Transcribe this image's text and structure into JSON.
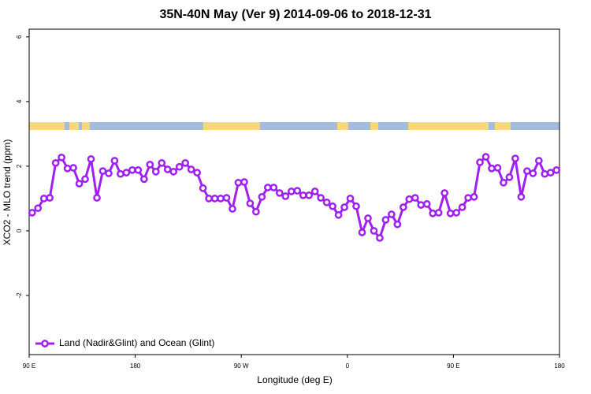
{
  "chart_data": {
    "type": "line",
    "title": "35N-40N May (Ver 9)   2014-09-06 to 2018-12-31",
    "x_label": "Longitude (deg E)",
    "y_label": "XCO2 - MLO trend (ppm)",
    "x": [
      92.5,
      97.5,
      102.5,
      107.5,
      112.5,
      117.5,
      122.5,
      127.5,
      132.5,
      137.5,
      142.5,
      147.5,
      152.5,
      157.5,
      162.5,
      167.5,
      172.5,
      177.5,
      182.5,
      187.5,
      192.5,
      197.5,
      202.5,
      207.5,
      212.5,
      217.5,
      222.5,
      227.5,
      232.5,
      237.5,
      242.5,
      247.5,
      252.5,
      257.5,
      262.5,
      267.5,
      272.5,
      277.5,
      282.5,
      287.5,
      292.5,
      297.5,
      302.5,
      307.5,
      312.5,
      317.5,
      322.5,
      327.5,
      332.5,
      337.5,
      342.5,
      347.5,
      352.5,
      357.5,
      362.5,
      367.5,
      372.5,
      377.5,
      382.5,
      387.5,
      392.5,
      397.5,
      402.5,
      407.5,
      412.5,
      417.5,
      422.5,
      427.5,
      432.5,
      437.5,
      442.5,
      447.5,
      452.5,
      457.5,
      462.5,
      467.5,
      472.5,
      477.5,
      482.5,
      487.5,
      492.5,
      497.5,
      502.5,
      507.5,
      512.5,
      517.5,
      522.5,
      527.5,
      532.5,
      537.5
    ],
    "series": [
      {
        "name": "Land (Nadir&Glint) and Ocean (Glint)",
        "color": "#a020f0",
        "values": [
          0.56,
          0.7,
          1.0,
          1.02,
          2.1,
          2.27,
          1.93,
          1.95,
          1.46,
          1.6,
          2.22,
          1.02,
          1.85,
          1.78,
          2.17,
          1.76,
          1.8,
          1.88,
          1.88,
          1.6,
          2.05,
          1.83,
          2.1,
          1.9,
          1.83,
          1.98,
          2.1,
          1.9,
          1.8,
          1.32,
          1.0,
          1.0,
          1.0,
          1.02,
          0.68,
          1.49,
          1.51,
          0.85,
          0.59,
          1.05,
          1.34,
          1.34,
          1.17,
          1.07,
          1.22,
          1.24,
          1.1,
          1.1,
          1.22,
          1.02,
          0.88,
          0.76,
          0.49,
          0.73,
          1.0,
          0.76,
          -0.05,
          0.39,
          0,
          -0.22,
          0.34,
          0.51,
          0.2,
          0.73,
          0.98,
          1.02,
          0.8,
          0.83,
          0.54,
          0.56,
          1.17,
          0.54,
          0.56,
          0.73,
          1.02,
          1.05,
          2.12,
          2.29,
          1.93,
          1.95,
          1.49,
          1.66,
          2.24,
          1.05,
          1.85,
          1.78,
          2.17,
          1.76,
          1.8,
          1.88
        ]
      }
    ],
    "xlim": [
      90,
      540
    ],
    "xticks": [
      {
        "value": 90,
        "label": "90 E"
      },
      180,
      {
        "value": 270,
        "label": "90 W"
      },
      {
        "value": 360,
        "label": "0"
      },
      {
        "value": 450,
        "label": "90 E"
      },
      {
        "value": 540,
        "label": "180"
      }
    ],
    "ylim": [
      -3.83,
      6.24
    ],
    "yticks": [
      6,
      4,
      2,
      0,
      -2
    ],
    "legend": "bottomleft"
  }
}
